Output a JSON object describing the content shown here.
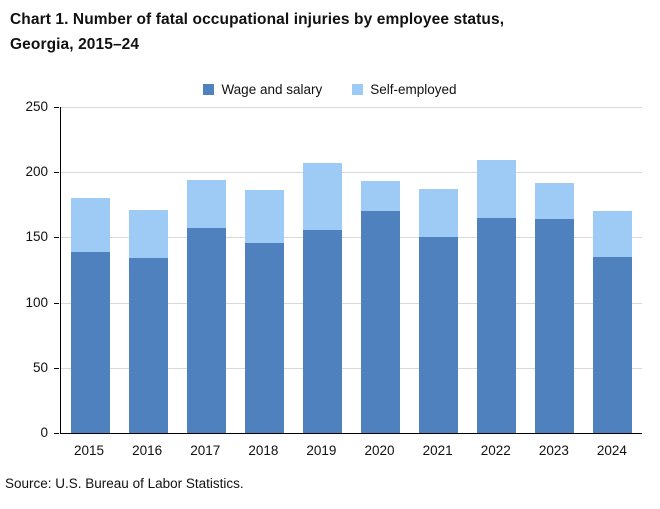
{
  "title": {
    "lines": [
      "Chart 1. Number of fatal occupational injuries by employee status,",
      "Georgia, 2015–24"
    ]
  },
  "legend": [
    {
      "label": "Wage and salary",
      "color": "#4E81BD"
    },
    {
      "label": "Self-employed",
      "color": "#9DCBF5"
    }
  ],
  "source": "Source: U.S. Bureau of Labor Statistics.",
  "chart_data": {
    "type": "bar",
    "stacked": true,
    "title": "Chart 1. Number of fatal occupational injuries by employee status, Georgia, 2015–24",
    "categories": [
      "2015",
      "2016",
      "2017",
      "2018",
      "2019",
      "2020",
      "2021",
      "2022",
      "2023",
      "2024"
    ],
    "series": [
      {
        "name": "Wage and salary",
        "color": "#4E81BD",
        "values": [
          139,
          134,
          157,
          146,
          156,
          170,
          150,
          165,
          164,
          135
        ]
      },
      {
        "name": "Self-employed",
        "color": "#9DCBF5",
        "values": [
          41,
          37,
          37,
          40,
          51,
          23,
          37,
          44,
          28,
          35
        ]
      }
    ],
    "totals": [
      180,
      171,
      194,
      186,
      207,
      193,
      187,
      209,
      192,
      170
    ],
    "xlabel": "",
    "ylabel": "",
    "ylim": [
      0,
      250
    ],
    "yticks": [
      0,
      50,
      100,
      150,
      200,
      250
    ],
    "grid": "horizontal-major",
    "legend_position": "top",
    "colors": {
      "gridline": "#d9d9d9",
      "axis": "#000000",
      "text": "#111111"
    }
  }
}
